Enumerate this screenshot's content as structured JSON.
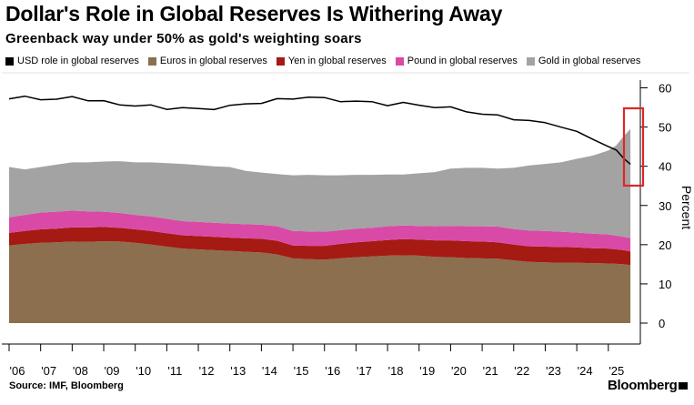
{
  "title": "Dollar's Role in Global Reserves Is Withering Away",
  "subtitle": "Greenback way under 50% as gold's weighting soars",
  "legend": [
    {
      "label": "USD role in global reserves",
      "color": "#000000"
    },
    {
      "label": "Euros in global reserves",
      "color": "#8b6f4e"
    },
    {
      "label": "Yen in global reserves",
      "color": "#a51a12"
    },
    {
      "label": "Pound in global reserves",
      "color": "#d94aa7"
    },
    {
      "label": "Gold in global reserves",
      "color": "#a3a3a3"
    }
  ],
  "source": "Source: IMF, Bloomberg",
  "brand": "Bloomberg",
  "highlight_color": "#e0252a",
  "chart_data": {
    "type": "area",
    "ylabel": "Percent",
    "ylim": [
      0,
      62
    ],
    "yticks": [
      0,
      10,
      20,
      30,
      40,
      50,
      60
    ],
    "xlim": [
      2006,
      2025.9
    ],
    "xticks": [
      {
        "label": "'06",
        "year": 2006.0
      },
      {
        "label": "'07",
        "year": 2007.0
      },
      {
        "label": "'08",
        "year": 2008.0
      },
      {
        "label": "'09",
        "year": 2009.0
      },
      {
        "label": "'10",
        "year": 2010.0
      },
      {
        "label": "'11",
        "year": 2011.0
      },
      {
        "label": "'12",
        "year": 2012.0
      },
      {
        "label": "'13",
        "year": 2013.0
      },
      {
        "label": "'14",
        "year": 2014.0
      },
      {
        "label": "'15",
        "year": 2015.0
      },
      {
        "label": "'16",
        "year": 2016.0
      },
      {
        "label": "'17",
        "year": 2017.0
      },
      {
        "label": "'18",
        "year": 2018.0
      },
      {
        "label": "'19",
        "year": 2019.0
      },
      {
        "label": "'20",
        "year": 2020.0
      },
      {
        "label": "'21",
        "year": 2021.0
      },
      {
        "label": "'22",
        "year": 2022.0
      },
      {
        "label": "'23",
        "year": 2023.0
      },
      {
        "label": "'24",
        "year": 2024.0
      },
      {
        "label": "'25",
        "year": 2025.0
      }
    ],
    "x": [
      2006.0,
      2006.5,
      2007.0,
      2007.5,
      2008.0,
      2008.5,
      2009.0,
      2009.5,
      2010.0,
      2010.5,
      2011.0,
      2011.5,
      2012.0,
      2012.5,
      2013.0,
      2013.5,
      2014.0,
      2014.5,
      2015.0,
      2015.5,
      2016.0,
      2016.5,
      2017.0,
      2017.5,
      2018.0,
      2018.5,
      2019.0,
      2019.5,
      2020.0,
      2020.5,
      2021.0,
      2021.5,
      2022.0,
      2022.5,
      2023.0,
      2023.5,
      2024.0,
      2024.5,
      2025.0,
      2025.25,
      2025.5,
      2025.7
    ],
    "stacked": true,
    "stack_note": "Area series are stacked in order Euros, Yen, Pound, Gold; values are each component's share.",
    "series": [
      {
        "name": "Euros in global reserves",
        "type": "area",
        "color": "#8b6f4e",
        "values": [
          19.8,
          20.2,
          20.5,
          20.6,
          20.8,
          20.7,
          20.9,
          20.8,
          20.5,
          20.0,
          19.5,
          19.0,
          18.8,
          18.6,
          18.4,
          18.2,
          18.0,
          17.5,
          16.5,
          16.3,
          16.2,
          16.5,
          16.8,
          17.0,
          17.2,
          17.3,
          17.2,
          16.9,
          16.8,
          16.6,
          16.5,
          16.4,
          16.0,
          15.6,
          15.5,
          15.4,
          15.4,
          15.3,
          15.2,
          15.1,
          15.0,
          14.8
        ]
      },
      {
        "name": "Yen in global reserves",
        "type": "area",
        "color": "#a51a12",
        "values": [
          3.2,
          3.3,
          3.4,
          3.5,
          3.6,
          3.7,
          3.6,
          3.5,
          3.4,
          3.5,
          3.4,
          3.4,
          3.4,
          3.4,
          3.4,
          3.4,
          3.5,
          3.5,
          3.3,
          3.4,
          3.5,
          3.7,
          3.8,
          3.9,
          4.0,
          4.1,
          4.1,
          4.2,
          4.3,
          4.3,
          4.3,
          4.2,
          4.0,
          4.0,
          4.0,
          4.0,
          3.9,
          3.8,
          3.8,
          3.7,
          3.6,
          3.5
        ]
      },
      {
        "name": "Pound in global reserves",
        "type": "area",
        "color": "#d94aa7",
        "values": [
          4.0,
          4.1,
          4.3,
          4.3,
          4.3,
          4.1,
          3.9,
          3.8,
          3.7,
          3.7,
          3.7,
          3.6,
          3.6,
          3.6,
          3.6,
          3.6,
          3.6,
          3.7,
          3.7,
          3.7,
          3.6,
          3.5,
          3.5,
          3.4,
          3.5,
          3.5,
          3.5,
          3.6,
          3.7,
          3.8,
          3.9,
          4.0,
          4.0,
          4.0,
          4.0,
          3.9,
          3.8,
          3.7,
          3.6,
          3.5,
          3.4,
          3.4
        ]
      },
      {
        "name": "Gold in global reserves",
        "type": "area",
        "color": "#a3a3a3",
        "values": [
          12.8,
          11.6,
          11.6,
          12.0,
          12.3,
          12.5,
          12.8,
          13.2,
          13.4,
          13.8,
          14.2,
          14.6,
          14.5,
          14.4,
          14.4,
          13.6,
          13.3,
          13.3,
          14.2,
          14.4,
          14.4,
          14.0,
          13.7,
          13.5,
          13.2,
          13.0,
          13.4,
          13.8,
          14.6,
          14.9,
          14.9,
          14.8,
          15.6,
          16.6,
          17.1,
          17.7,
          18.8,
          19.9,
          21.4,
          23.0,
          25.8,
          27.8
        ]
      },
      {
        "name": "USD role in global reserves",
        "type": "line",
        "color": "#000000",
        "values": [
          57.2,
          57.6,
          57.3,
          56.9,
          57.7,
          57.0,
          56.4,
          55.8,
          55.5,
          55.3,
          54.8,
          54.9,
          54.5,
          54.8,
          55.3,
          55.9,
          56.3,
          56.9,
          57.3,
          57.7,
          57.2,
          56.8,
          56.5,
          56.3,
          55.8,
          56.0,
          55.6,
          55.2,
          54.8,
          54.1,
          53.3,
          52.8,
          52.2,
          51.5,
          51.0,
          50.3,
          48.6,
          47.0,
          45.2,
          43.8,
          42.2,
          40.5
        ]
      }
    ]
  }
}
